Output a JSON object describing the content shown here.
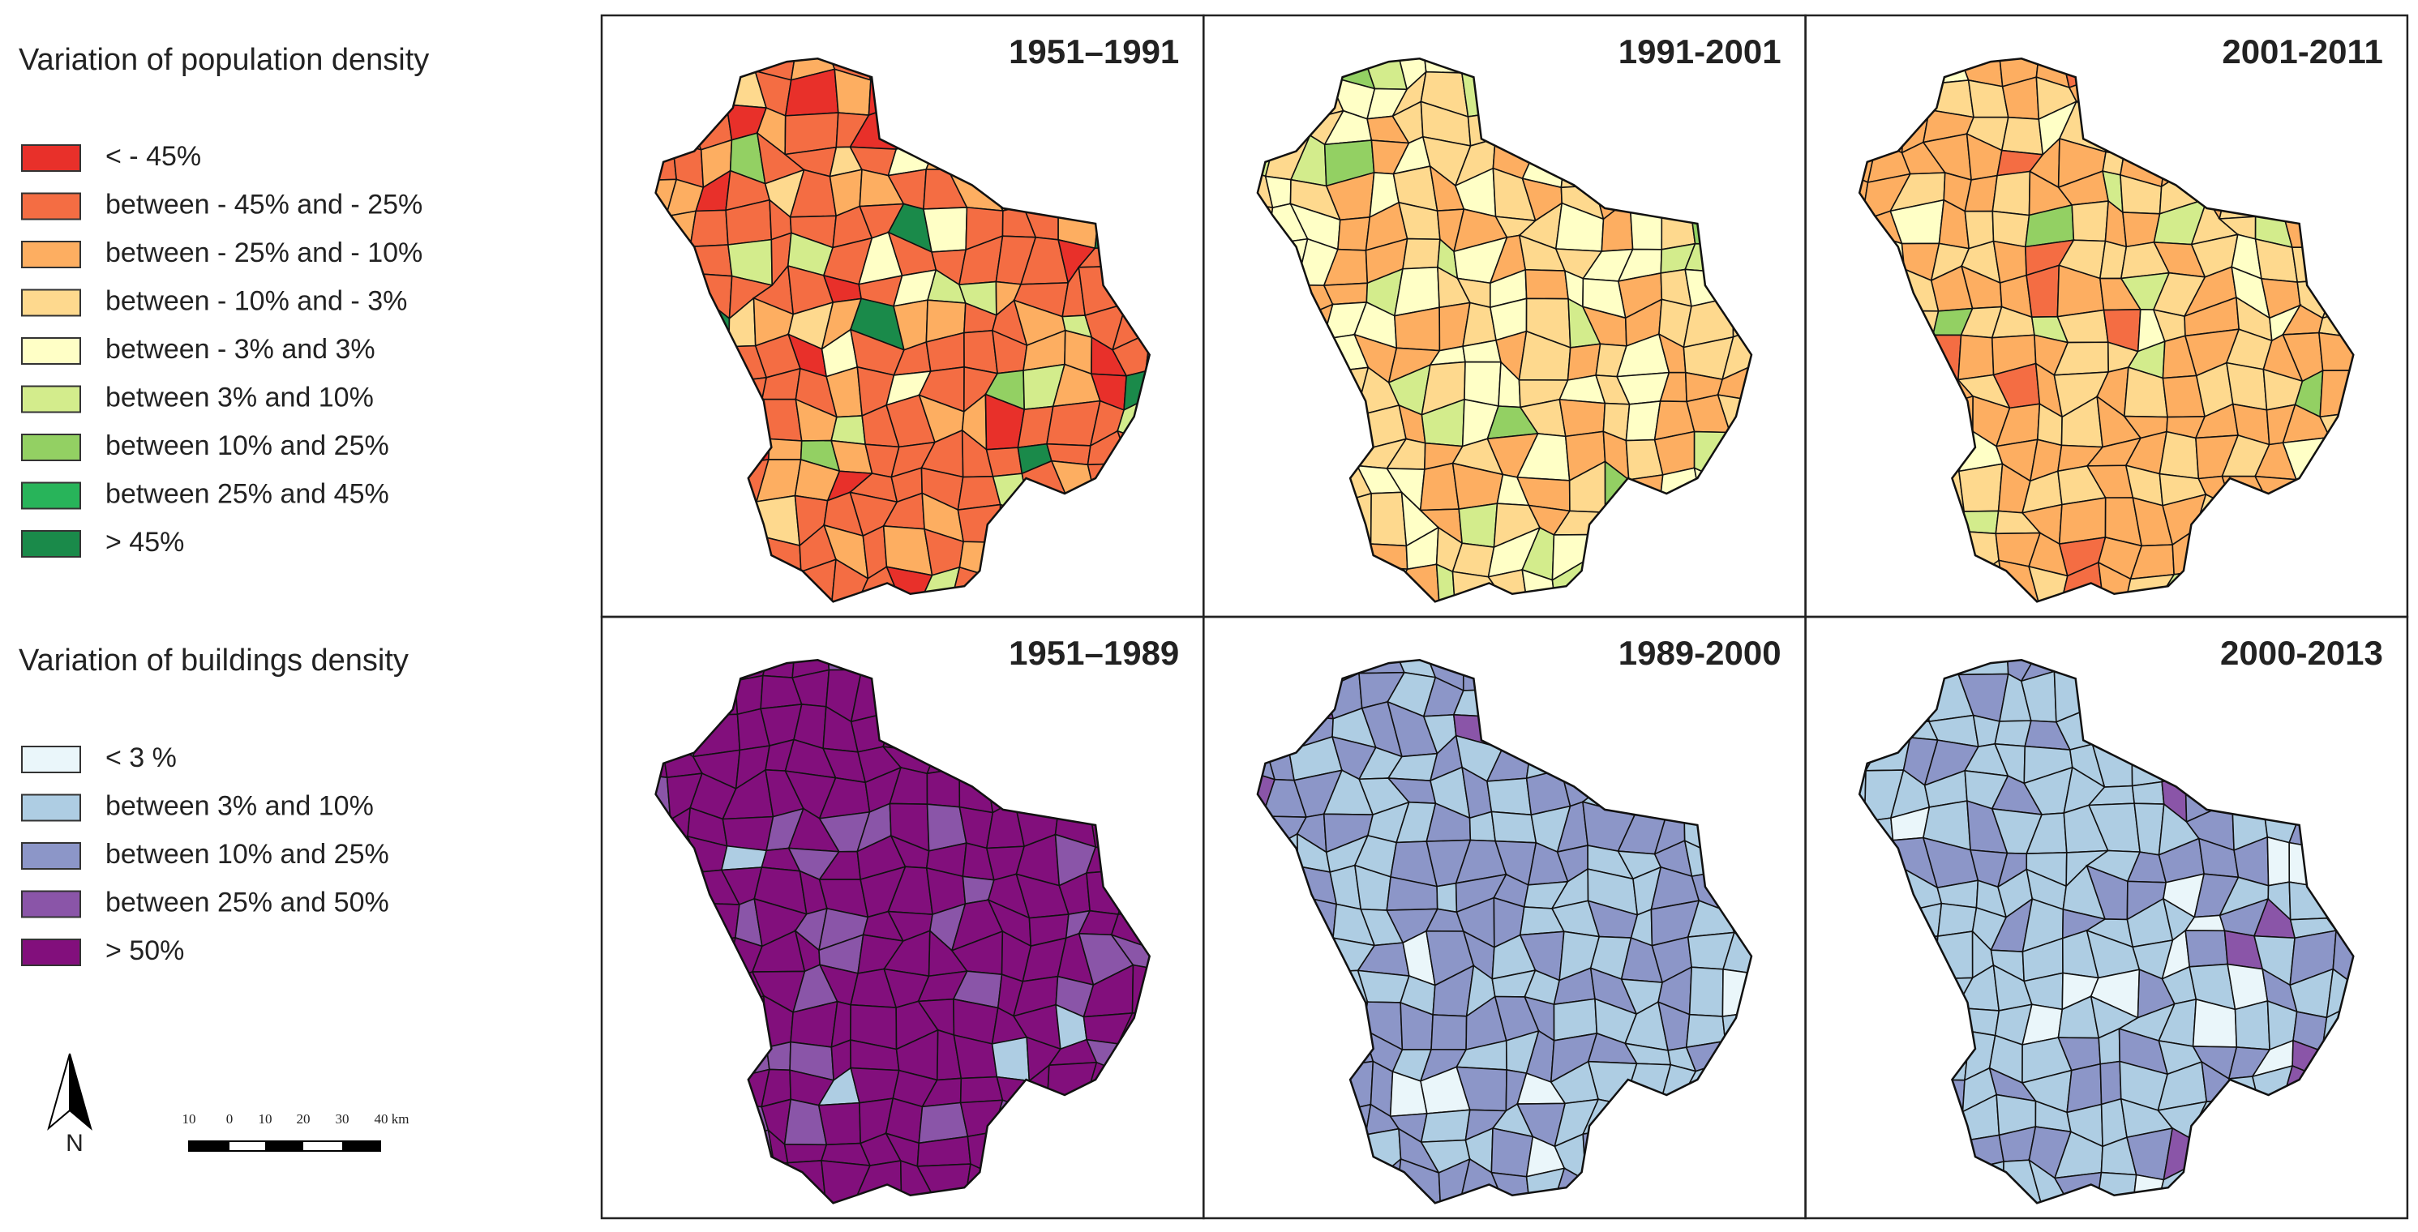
{
  "legends": [
    {
      "title": "Variation of population density",
      "items": [
        {
          "label": "< - 45%",
          "color": "#e8302a"
        },
        {
          "label": "between - 45% and - 25%",
          "color": "#f46d43"
        },
        {
          "label": "between - 25% and - 10%",
          "color": "#fdae61"
        },
        {
          "label": "between - 10% and - 3%",
          "color": "#fed98e"
        },
        {
          "label": "between - 3% and 3%",
          "color": "#ffffc6"
        },
        {
          "label": "between 3% and 10%",
          "color": "#d3ec8c"
        },
        {
          "label": "between 10% and 25%",
          "color": "#93d063"
        },
        {
          "label": "between 25% and 45%",
          "color": "#28b45a"
        },
        {
          "label": ">  45%",
          "color": "#1a8a4a"
        }
      ]
    },
    {
      "title": "Variation of buildings density",
      "items": [
        {
          "label": "< 3 %",
          "color": "#eaf6fa"
        },
        {
          "label": "between 3% and 10%",
          "color": "#aecde3"
        },
        {
          "label": "between 10% and 25%",
          "color": "#8c96c8"
        },
        {
          "label": "between 25% and 50%",
          "color": "#8a55a8"
        },
        {
          "label": " > 50%",
          "color": "#820f7c"
        }
      ]
    }
  ],
  "panels": [
    {
      "title": "1951–1991"
    },
    {
      "title": "1991-2001"
    },
    {
      "title": "2001-2011"
    },
    {
      "title": "1951–1989"
    },
    {
      "title": "1989-2000"
    },
    {
      "title": "2000-2013"
    }
  ],
  "north_label": "N",
  "scale_bar": {
    "labels": [
      "10",
      "0",
      "10",
      "20",
      "30",
      "40 km"
    ]
  }
}
